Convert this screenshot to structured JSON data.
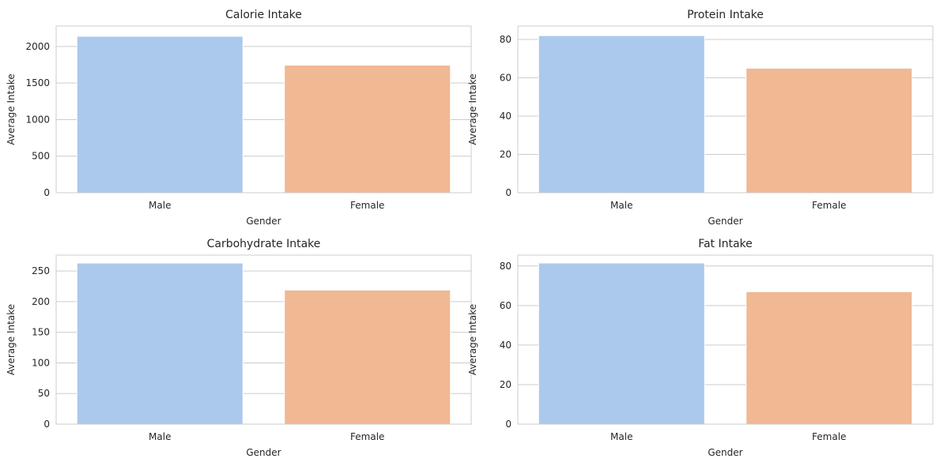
{
  "chart_data": [
    {
      "type": "bar",
      "title": "Calorie Intake",
      "xlabel": "Gender",
      "ylabel": "Average Intake",
      "categories": [
        "Male",
        "Female"
      ],
      "values": [
        2140,
        1745
      ],
      "ylim": [
        0,
        2280
      ],
      "yticks": [
        0,
        500,
        1000,
        1500,
        2000
      ],
      "colors": [
        "#abc9ec",
        "#f0b893"
      ],
      "grid": true
    },
    {
      "type": "bar",
      "title": "Protein Intake",
      "xlabel": "Gender",
      "ylabel": "Average Intake",
      "categories": [
        "Male",
        "Female"
      ],
      "values": [
        82,
        65
      ],
      "ylim": [
        0,
        87
      ],
      "yticks": [
        0,
        20,
        40,
        60,
        80
      ],
      "colors": [
        "#abc9ec",
        "#f0b893"
      ],
      "grid": true
    },
    {
      "type": "bar",
      "title": "Carbohydrate Intake",
      "xlabel": "Gender",
      "ylabel": "Average Intake",
      "categories": [
        "Male",
        "Female"
      ],
      "values": [
        263,
        219
      ],
      "ylim": [
        0,
        276
      ],
      "yticks": [
        0,
        50,
        100,
        150,
        200,
        250
      ],
      "colors": [
        "#abc9ec",
        "#f0b893"
      ],
      "grid": true
    },
    {
      "type": "bar",
      "title": "Fat Intake",
      "xlabel": "Gender",
      "ylabel": "Average Intake",
      "categories": [
        "Male",
        "Female"
      ],
      "values": [
        81.5,
        67
      ],
      "ylim": [
        0,
        85.5
      ],
      "yticks": [
        0,
        20,
        40,
        60,
        80
      ],
      "colors": [
        "#abc9ec",
        "#f0b893"
      ],
      "grid": true
    }
  ]
}
